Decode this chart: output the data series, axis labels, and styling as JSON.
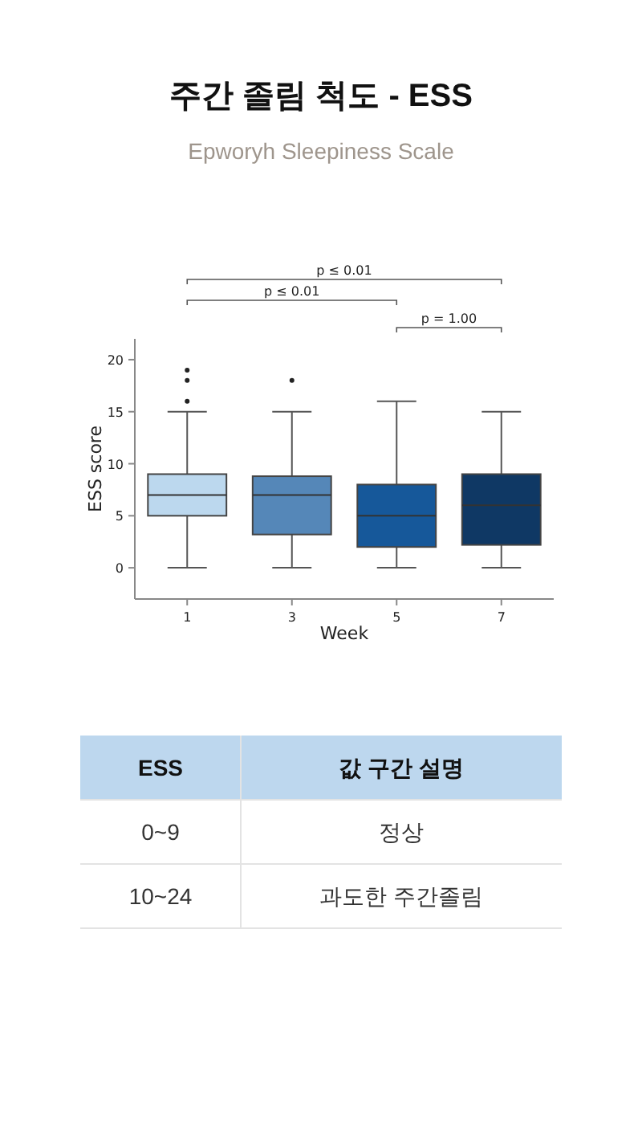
{
  "chart_data": [
    {
      "type": "box",
      "title": "주간 졸림 척도 - ESS",
      "subtitle": "Epworyh Sleepiness Scale",
      "xlabel": "Week",
      "ylabel": "ESS score",
      "categories": [
        "1",
        "3",
        "5",
        "7"
      ],
      "colors": [
        "#bcd8ee",
        "#5587b8",
        "#16589a",
        "#0f3864"
      ],
      "boxes": [
        {
          "low": 0,
          "q1": 5,
          "median": 7,
          "q3": 9,
          "high": 15,
          "outliers": [
            16,
            18,
            19
          ]
        },
        {
          "low": 0,
          "q1": 3.2,
          "median": 7,
          "q3": 8.8,
          "high": 15,
          "outliers": [
            18
          ]
        },
        {
          "low": 0,
          "q1": 2,
          "median": 5,
          "q3": 8,
          "high": 16
        },
        {
          "low": 0,
          "q1": 2.2,
          "median": 6,
          "q3": 9,
          "high": 15
        }
      ],
      "ylim": [
        -3,
        22
      ],
      "yticks": [
        0,
        5,
        10,
        15,
        20
      ],
      "annotations": [
        "p ≤ 0.01",
        "p ≤ 0.01",
        "p = 1.00"
      ]
    },
    {
      "type": "other",
      "annotations": [
        "ESS",
        "값 구간 설명",
        "0~9",
        "정상",
        "10~24",
        "과도한 주간졸림"
      ]
    }
  ]
}
